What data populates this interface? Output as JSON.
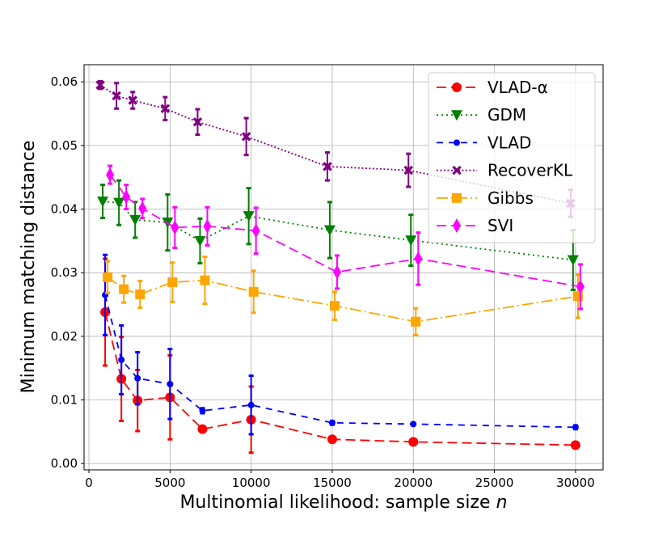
{
  "chart_data": {
    "type": "line",
    "title": "",
    "xlabel": "Multinomial likelihood: sample size ",
    "xlabel_italic": "n",
    "ylabel": "Minimum matching distance",
    "xlim": [
      -300,
      31700
    ],
    "ylim": [
      -0.001,
      0.0627
    ],
    "xticks": [
      0,
      5000,
      10000,
      15000,
      20000,
      25000,
      30000
    ],
    "xtick_labels": [
      "0",
      "5000",
      "10000",
      "15000",
      "20000",
      "25000",
      "30000"
    ],
    "yticks": [
      0.0,
      0.01,
      0.02,
      0.03,
      0.04,
      0.05,
      0.06
    ],
    "ytick_labels": [
      "0.00",
      "0.01",
      "0.02",
      "0.03",
      "0.04",
      "0.05",
      "0.06"
    ],
    "grid": true,
    "legend_position": "top-right",
    "series": [
      {
        "name": "VLAD-α",
        "color": "#ff0000",
        "marker": "circle",
        "dash": "long-dash",
        "x": [
          1000,
          2000,
          3000,
          5000,
          7000,
          10000,
          15000,
          20000,
          30000
        ],
        "y": [
          0.0238,
          0.0133,
          0.0099,
          0.0104,
          0.0054,
          0.0069,
          0.0038,
          0.0034,
          0.0029
        ],
        "err_lo": [
          0.0154,
          0.0067,
          0.0051,
          0.0038,
          0.0054,
          0.0017,
          0.0038,
          0.0034,
          0.0029
        ],
        "err_hi": [
          0.0322,
          0.0199,
          0.0147,
          0.017,
          0.0054,
          0.0121,
          0.0038,
          0.0034,
          0.0029
        ]
      },
      {
        "name": "GDM",
        "color": "#008000",
        "marker": "triangle-down",
        "dash": "dotted",
        "x": [
          1000,
          2000,
          3000,
          5000,
          7000,
          10000,
          15000,
          20000,
          30000
        ],
        "y": [
          0.0412,
          0.041,
          0.0383,
          0.0379,
          0.035,
          0.0389,
          0.0367,
          0.0351,
          0.032
        ],
        "err_lo": [
          0.0386,
          0.0375,
          0.0355,
          0.0335,
          0.0315,
          0.0345,
          0.0323,
          0.0311,
          0.0273
        ],
        "err_hi": [
          0.0438,
          0.0445,
          0.0411,
          0.0423,
          0.0385,
          0.0433,
          0.0411,
          0.0391,
          0.0367
        ]
      },
      {
        "name": "VLAD",
        "color": "#0000ff",
        "marker": "small-circle",
        "dash": "dash",
        "x": [
          1000,
          2000,
          3000,
          5000,
          7000,
          10000,
          15000,
          20000,
          30000
        ],
        "y": [
          0.0265,
          0.0163,
          0.0134,
          0.0125,
          0.0083,
          0.0092,
          0.0064,
          0.0062,
          0.0057
        ],
        "err_lo": [
          0.0202,
          0.0109,
          0.0093,
          0.007,
          0.0079,
          0.0046,
          0.0061,
          0.006,
          0.0054
        ],
        "err_hi": [
          0.0328,
          0.0217,
          0.0175,
          0.018,
          0.0087,
          0.0138,
          0.0067,
          0.0064,
          0.006
        ]
      },
      {
        "name": "RecoverKL",
        "color": "#800080",
        "marker": "x-filled",
        "dash": "dense-dot",
        "x": [
          1000,
          2000,
          3000,
          5000,
          7000,
          10000,
          15000,
          20000,
          30000
        ],
        "y": [
          0.0595,
          0.0578,
          0.0571,
          0.0558,
          0.0537,
          0.0514,
          0.0467,
          0.0461,
          0.0409
        ],
        "err_lo": [
          0.0589,
          0.0558,
          0.0558,
          0.054,
          0.0517,
          0.0485,
          0.0445,
          0.0435,
          0.0388
        ],
        "err_hi": [
          0.0601,
          0.0598,
          0.0584,
          0.0576,
          0.0557,
          0.0543,
          0.0489,
          0.0487,
          0.043
        ]
      },
      {
        "name": "Gibbs",
        "color": "#ffa500",
        "marker": "square",
        "dash": "dash-dot",
        "x": [
          1000,
          2000,
          3000,
          5000,
          7000,
          10000,
          15000,
          20000,
          30000
        ],
        "y": [
          0.0293,
          0.0274,
          0.0266,
          0.0285,
          0.0288,
          0.027,
          0.0248,
          0.0223,
          0.0263
        ],
        "err_lo": [
          0.0268,
          0.0253,
          0.0245,
          0.0254,
          0.0251,
          0.0237,
          0.0226,
          0.0202,
          0.0229
        ],
        "err_hi": [
          0.0318,
          0.0295,
          0.0287,
          0.0316,
          0.0325,
          0.0303,
          0.027,
          0.0244,
          0.0297
        ]
      },
      {
        "name": "SVI",
        "color": "#ff00ff",
        "marker": "diamond",
        "dash": "long-dash",
        "x": [
          1000,
          2000,
          3000,
          5000,
          7000,
          10000,
          15000,
          20000,
          30000
        ],
        "y": [
          0.0454,
          0.0419,
          0.0401,
          0.0371,
          0.0373,
          0.0366,
          0.0301,
          0.0322,
          0.0278
        ],
        "err_lo": [
          0.044,
          0.04,
          0.0386,
          0.0339,
          0.0343,
          0.033,
          0.0275,
          0.0281,
          0.0243
        ],
        "err_hi": [
          0.0468,
          0.0438,
          0.0416,
          0.0403,
          0.0403,
          0.0402,
          0.0327,
          0.0363,
          0.0313
        ]
      }
    ]
  }
}
